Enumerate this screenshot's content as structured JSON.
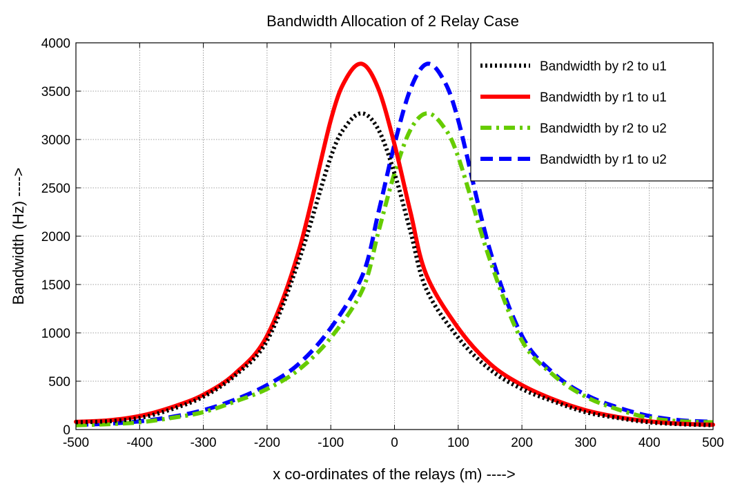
{
  "chart_data": {
    "type": "line",
    "title": "Bandwidth Allocation of 2 Relay Case",
    "xlabel": "x co-ordinates of the relays (m) ---->",
    "ylabel": "Bandwidth (Hz) ---->",
    "xlim": [
      -500,
      500
    ],
    "ylim": [
      0,
      4000
    ],
    "xticks": [
      -500,
      -400,
      -300,
      -200,
      -100,
      0,
      100,
      200,
      300,
      400,
      500
    ],
    "yticks": [
      0,
      500,
      1000,
      1500,
      2000,
      2500,
      3000,
      3500,
      4000
    ],
    "grid": true,
    "legend_position": "top-right",
    "series": [
      {
        "name": "Bandwidth by r2 to u1",
        "color": "#000000",
        "style": "dotted",
        "x": [
          -500,
          -450,
          -400,
          -350,
          -300,
          -250,
          -200,
          -150,
          -100,
          -75,
          -50,
          -25,
          0,
          25,
          50,
          100,
          150,
          200,
          250,
          300,
          350,
          400,
          450,
          500
        ],
        "y": [
          75,
          85,
          120,
          210,
          340,
          560,
          920,
          1750,
          2820,
          3150,
          3270,
          3100,
          2650,
          2050,
          1450,
          950,
          620,
          420,
          290,
          180,
          120,
          75,
          55,
          45
        ]
      },
      {
        "name": "Bandwidth by r1 to u1",
        "color": "#ff0000",
        "style": "solid",
        "x": [
          -500,
          -450,
          -400,
          -350,
          -300,
          -250,
          -200,
          -150,
          -100,
          -75,
          -50,
          -25,
          0,
          25,
          50,
          100,
          150,
          200,
          250,
          300,
          350,
          400,
          450,
          500
        ],
        "y": [
          80,
          95,
          140,
          230,
          360,
          580,
          970,
          1850,
          3200,
          3640,
          3780,
          3520,
          2950,
          2250,
          1600,
          1050,
          680,
          460,
          310,
          200,
          130,
          85,
          60,
          50
        ]
      },
      {
        "name": "Bandwidth by r2 to u2",
        "color": "#66cc00",
        "style": "dashdot",
        "x": [
          -500,
          -450,
          -400,
          -350,
          -300,
          -250,
          -200,
          -150,
          -100,
          -50,
          -25,
          0,
          25,
          50,
          75,
          100,
          150,
          200,
          250,
          300,
          350,
          400,
          450,
          500
        ],
        "y": [
          45,
          55,
          75,
          120,
          180,
          290,
          420,
          620,
          950,
          1450,
          2050,
          2650,
          3100,
          3270,
          3150,
          2820,
          1750,
          920,
          560,
          340,
          210,
          120,
          85,
          75
        ]
      },
      {
        "name": "Bandwidth by r1 to u2",
        "color": "#0000ff",
        "style": "dashed",
        "x": [
          -500,
          -450,
          -400,
          -350,
          -300,
          -250,
          -200,
          -150,
          -100,
          -50,
          -25,
          0,
          25,
          50,
          75,
          100,
          150,
          200,
          250,
          300,
          350,
          400,
          450,
          500
        ],
        "y": [
          50,
          60,
          85,
          130,
          200,
          310,
          460,
          680,
          1050,
          1600,
          2250,
          2950,
          3520,
          3780,
          3640,
          3200,
          1850,
          970,
          580,
          360,
          230,
          140,
          95,
          80
        ]
      }
    ]
  }
}
